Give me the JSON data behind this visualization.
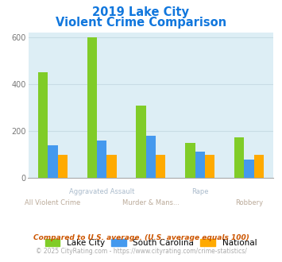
{
  "title_line1": "2019 Lake City",
  "title_line2": "Violent Crime Comparison",
  "categories": [
    "All Violent Crime",
    "Aggravated Assault",
    "Murder & Mans...",
    "Rape",
    "Robbery"
  ],
  "series": {
    "Lake City": [
      450,
      600,
      310,
      150,
      175
    ],
    "South Carolina": [
      140,
      162,
      182,
      112,
      80
    ],
    "National": [
      100,
      100,
      100,
      100,
      100
    ]
  },
  "colors": {
    "Lake City": "#80cc28",
    "South Carolina": "#4499ee",
    "National": "#ffaa00"
  },
  "ylim": [
    0,
    620
  ],
  "yticks": [
    0,
    200,
    400,
    600
  ],
  "plot_bg": "#ddeef5",
  "grid_color": "#c8dce5",
  "title_color": "#1177dd",
  "blue_label_color": "#aabbcc",
  "tan_label_color": "#bbaa99",
  "footnote1": "Compared to U.S. average. (U.S. average equals 100)",
  "footnote2": "© 2025 CityRating.com - https://www.cityrating.com/crime-statistics/",
  "footnote1_color": "#cc5500",
  "footnote2_color": "#aaaaaa",
  "footnote2_url_color": "#4499ee"
}
